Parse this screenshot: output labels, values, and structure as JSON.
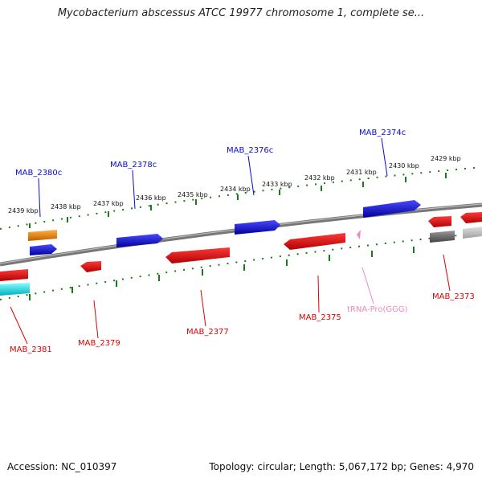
{
  "header": {
    "title": "Mycobacterium abscessus ATCC 19977 chromosome 1, complete se..."
  },
  "footer": {
    "accession": "Accession: NC_010397",
    "summary": "Topology: circular; Length: 5,067,172 bp; Genes: 4,970"
  },
  "map": {
    "kbp_labels": [
      "2439 kbp",
      "2438 kbp",
      "2437 kbp",
      "2436 kbp",
      "2435 kbp",
      "2434 kbp",
      "2433 kbp",
      "2432 kbp",
      "2431 kbp",
      "2430 kbp",
      "2429 kbp"
    ],
    "genes": [
      {
        "name": "MAB_2380c",
        "strand": "forward",
        "color": "#0a0ad8"
      },
      {
        "name": "MAB_2378c",
        "strand": "forward",
        "color": "#0a0ad8"
      },
      {
        "name": "MAB_2376c",
        "strand": "forward",
        "color": "#0a0ad8"
      },
      {
        "name": "MAB_2374c",
        "strand": "forward",
        "color": "#0a0ad8"
      },
      {
        "name": "MAB_2381",
        "strand": "reverse",
        "color": "#e00000"
      },
      {
        "name": "MAB_2379",
        "strand": "reverse",
        "color": "#e00000"
      },
      {
        "name": "MAB_2377",
        "strand": "reverse",
        "color": "#e00000"
      },
      {
        "name": "MAB_2375",
        "strand": "reverse",
        "color": "#e00000"
      },
      {
        "name": "tRNA-Pro(GGG)",
        "strand": "reverse",
        "color": "#ee88bb"
      },
      {
        "name": "MAB_2373",
        "strand": "reverse",
        "color": "#e00000"
      }
    ],
    "colors": {
      "forward_gene": "#0a0ad8",
      "reverse_gene": "#e00000",
      "trna": "#ee88bb",
      "backbone": "#777777",
      "ticks": "#1a7a1a",
      "other_orange": "#f08c00",
      "other_cyan": "#00e0e8",
      "other_gray": "#666666"
    }
  }
}
